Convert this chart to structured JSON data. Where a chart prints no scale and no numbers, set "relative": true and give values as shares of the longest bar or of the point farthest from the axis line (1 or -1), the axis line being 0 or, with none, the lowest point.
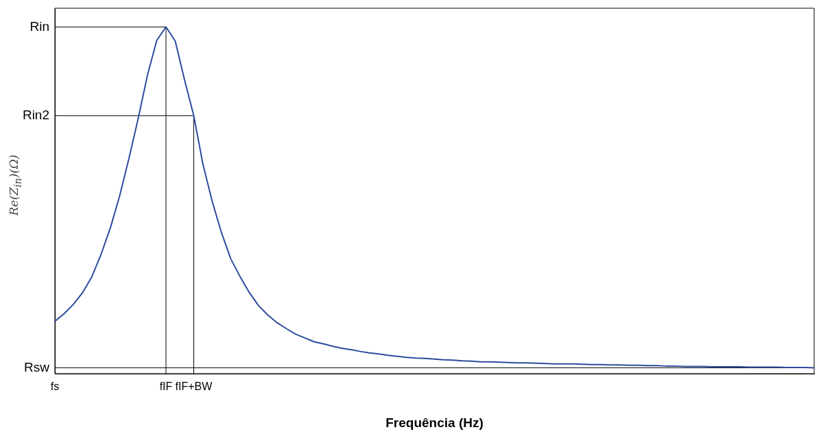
{
  "chart_data": {
    "type": "line",
    "xlabel": "Frequência (Hz)",
    "ylabel": "Re(Z$_{in}$)(Ω)",
    "relative": true,
    "categories": [
      "fs",
      null,
      null,
      null,
      null,
      null,
      null,
      null,
      null,
      null,
      null,
      null,
      "fIF",
      null,
      null,
      "fIF+BW",
      null,
      null,
      null,
      null,
      null,
      null,
      null,
      null,
      null,
      null,
      null,
      null,
      null,
      null,
      null,
      null,
      null,
      null,
      null,
      null,
      null,
      null,
      null,
      null,
      null,
      null,
      null,
      null,
      null,
      null,
      null,
      null,
      null,
      null,
      null,
      null,
      null,
      null,
      null,
      null,
      null,
      null,
      null,
      null,
      null,
      null,
      null,
      null,
      null,
      null,
      null,
      null,
      null,
      null,
      null,
      null,
      null,
      null,
      null,
      null,
      null,
      null,
      null,
      null,
      null,
      null,
      null
    ],
    "series": [
      {
        "color": "#2e4a9e",
        "values": [
          0.151,
          0.173,
          0.2,
          0.234,
          0.28,
          0.345,
          0.421,
          0.513,
          0.621,
          0.736,
          0.861,
          0.961,
          1,
          0.959,
          0.848,
          0.744,
          0.603,
          0.496,
          0.406,
          0.331,
          0.28,
          0.234,
          0.196,
          0.169,
          0.147,
          0.13,
          0.114,
          0.103,
          0.092,
          0.086,
          0.079,
          0.073,
          0.069,
          0.064,
          0.06,
          0.057,
          0.053,
          0.05,
          0.047,
          0.045,
          0.044,
          0.042,
          0.04,
          0.039,
          0.037,
          0.036,
          0.034,
          0.034,
          0.033,
          0.032,
          0.031,
          0.031,
          0.03,
          0.029,
          0.028,
          0.028,
          0.028,
          0.027,
          0.026,
          0.026,
          0.025,
          0.025,
          0.024,
          0.024,
          0.023,
          0.023,
          0.022,
          0.022,
          0.021,
          0.021,
          0.021,
          0.02,
          0.02,
          0.02,
          0.02,
          0.019,
          0.019,
          0.019,
          0.019,
          0.018,
          0.018,
          0.018,
          0.017
        ]
      }
    ],
    "ref_lines": [
      {
        "axis": "y",
        "value": 1,
        "label": "Rin",
        "color": "#000000"
      },
      {
        "axis": "y",
        "value": 0.744,
        "label": "Rin2",
        "color": "#000000"
      },
      {
        "axis": "y",
        "value": 0.017,
        "label": "Rsw",
        "color": "#000000"
      },
      {
        "axis": "x",
        "value": "fIF",
        "color": "#000000"
      },
      {
        "axis": "x",
        "value": "fIF+BW",
        "color": "#000000"
      }
    ],
    "grid": false,
    "legend": false,
    "marker": "none",
    "line_style": "solid"
  }
}
